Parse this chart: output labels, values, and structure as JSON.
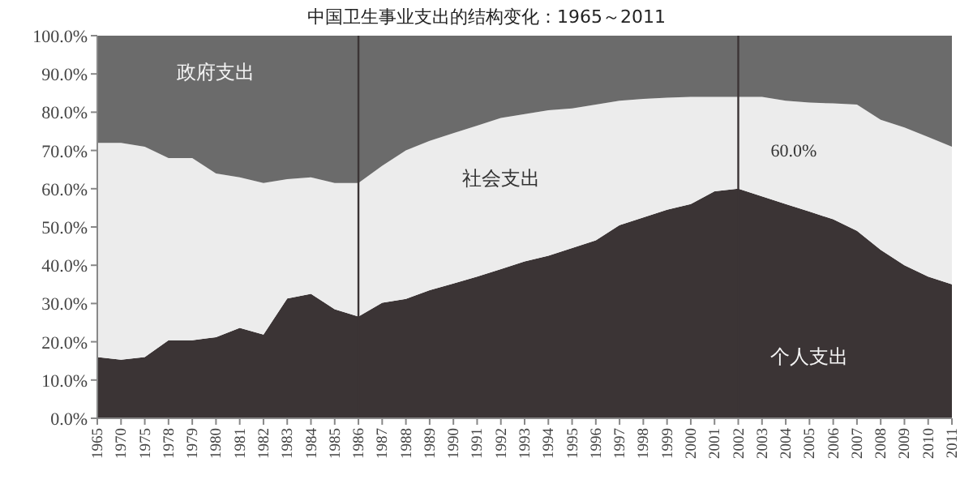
{
  "chart_data": {
    "type": "area",
    "stacked": true,
    "title": "中国卫生事业支出的结构变化：1965～2011",
    "categories": [
      "1965",
      "1970",
      "1975",
      "1978",
      "1979",
      "1980",
      "1981",
      "1982",
      "1983",
      "1984",
      "1985",
      "1986",
      "1987",
      "1988",
      "1989",
      "1990",
      "1991",
      "1992",
      "1993",
      "1994",
      "1995",
      "1996",
      "1997",
      "1998",
      "1999",
      "2000",
      "2001",
      "2002",
      "2003",
      "2004",
      "2005",
      "2006",
      "2007",
      "2008",
      "2009",
      "2010",
      "2011"
    ],
    "series": [
      {
        "name": "个人支出",
        "color": "#3b3435",
        "values": [
          16,
          15.3,
          16,
          20.4,
          20.4,
          21.2,
          23.6,
          21.9,
          31.3,
          32.5,
          28.5,
          26.6,
          30.2,
          31.2,
          33.5,
          35.2,
          37,
          39,
          41,
          42.5,
          44.5,
          46.5,
          50.5,
          52.5,
          54.5,
          56,
          59.3,
          60,
          58,
          56,
          54,
          52,
          49,
          44,
          40,
          37,
          35
        ]
      },
      {
        "name": "社会支出",
        "color": "#ececec",
        "values": [
          56,
          56.7,
          55,
          47.6,
          47.6,
          42.8,
          39.4,
          39.6,
          31.2,
          30.5,
          33,
          34.9,
          35.8,
          38.8,
          39,
          39.3,
          39.5,
          39.5,
          38.5,
          38,
          36.5,
          35.5,
          32.5,
          31,
          29.3,
          28,
          24.7,
          24,
          26,
          27,
          28.5,
          30.3,
          33,
          34,
          36,
          36.5,
          36
        ]
      },
      {
        "name": "政府支出",
        "color": "#6b6b6b",
        "values": [
          28,
          28,
          29,
          32,
          32,
          36,
          37,
          38.5,
          37.5,
          37,
          38.5,
          38.5,
          34,
          30,
          27.5,
          25.5,
          23.5,
          21.5,
          20.5,
          19.5,
          19,
          18,
          17,
          16.5,
          16.2,
          16,
          16,
          16,
          16,
          17,
          17.5,
          17.7,
          18,
          22,
          24,
          26.5,
          29
        ]
      }
    ],
    "ylim": [
      0,
      100
    ],
    "yticks": [
      {
        "value": 0,
        "label": "0.0%"
      },
      {
        "value": 10,
        "label": "10.0%"
      },
      {
        "value": 20,
        "label": "20.0%"
      },
      {
        "value": 30,
        "label": "30.0%"
      },
      {
        "value": 40,
        "label": "40.0%"
      },
      {
        "value": 50,
        "label": "50.0%"
      },
      {
        "value": 60,
        "label": "60.0%"
      },
      {
        "value": 70,
        "label": "70.0%"
      },
      {
        "value": 80,
        "label": "80.0%"
      },
      {
        "value": 90,
        "label": "90.0%"
      },
      {
        "value": 100,
        "label": "100.0%"
      }
    ],
    "ref_lines": [
      {
        "axis": "x",
        "value": "1986",
        "color": "#3b3435"
      },
      {
        "axis": "x",
        "value": "2002",
        "color": "#3b3435"
      }
    ],
    "annotations": [
      {
        "text": "60.0%",
        "x": "2002",
        "y": 60
      }
    ]
  }
}
